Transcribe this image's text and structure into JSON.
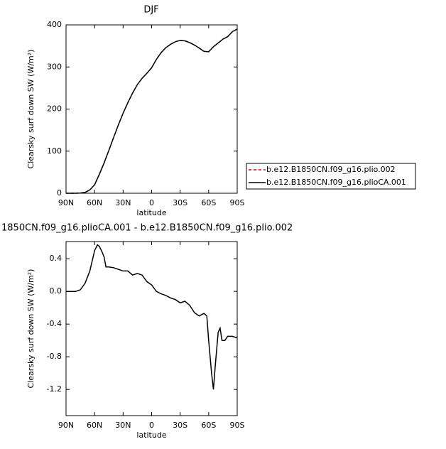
{
  "chart_data": [
    {
      "type": "line",
      "title": "DJF",
      "ylabel": "Clearsky surf down SW (W/m²)",
      "xlabel": "latitude",
      "x": [
        90,
        85,
        80,
        75,
        70,
        65,
        60,
        55,
        50,
        45,
        40,
        35,
        30,
        25,
        20,
        15,
        10,
        5,
        0,
        -5,
        -10,
        -15,
        -20,
        -25,
        -30,
        -35,
        -40,
        -45,
        -50,
        -55,
        -60,
        -65,
        -70,
        -75,
        -80,
        -85,
        -90
      ],
      "xlim": [
        90,
        -90
      ],
      "xticks": [
        {
          "value": 90,
          "label": "90N"
        },
        {
          "value": 60,
          "label": "60N"
        },
        {
          "value": 30,
          "label": "30N"
        },
        0,
        {
          "value": -30,
          "label": "30S"
        },
        {
          "value": -60,
          "label": "60S"
        },
        {
          "value": -90,
          "label": "90S"
        }
      ],
      "ylim": [
        0,
        400
      ],
      "yticks": [
        0,
        100,
        200,
        300,
        400
      ],
      "legend": "right",
      "series": [
        {
          "name": "b.e12.B1850CN.f09_g16.plio.002",
          "color": "#e00000",
          "line_style": "dashed",
          "values": [
            0,
            0,
            0,
            0.5,
            2,
            8,
            20,
            45,
            72,
            102,
            132,
            162,
            190,
            215,
            238,
            258,
            273,
            285,
            298,
            318,
            334,
            346,
            354,
            360,
            363,
            362,
            358,
            352,
            345,
            337,
            336,
            348,
            357,
            366,
            372,
            384,
            390
          ]
        },
        {
          "name": "b.e12.B1850CN.f09_g16.plioCA.001",
          "color": "#000000",
          "line_style": "solid",
          "values": [
            0,
            0,
            0,
            0.5,
            2,
            8,
            20,
            45,
            72,
            102,
            132,
            162,
            190,
            215,
            238,
            258,
            273,
            285,
            298,
            318,
            334,
            346,
            354,
            360,
            363,
            362,
            358,
            352,
            345,
            337,
            336,
            348,
            357,
            366,
            372,
            384,
            390
          ]
        }
      ]
    },
    {
      "type": "line",
      "title": "1850CN.f09_g16.plioCA.001 - b.e12.B1850CN.f09_g16.plio.002",
      "ylabel": "Clearsky surf down SW (W/m²)",
      "xlabel": "latitude",
      "x": [
        90,
        85,
        80,
        75,
        70,
        65,
        60,
        57,
        55,
        52,
        50,
        48,
        45,
        40,
        35,
        30,
        25,
        20,
        15,
        10,
        5,
        0,
        -5,
        -10,
        -15,
        -20,
        -25,
        -30,
        -35,
        -40,
        -45,
        -50,
        -55,
        -58,
        -60,
        -63,
        -65,
        -67,
        -70,
        -72,
        -74,
        -77,
        -80,
        -85,
        -90
      ],
      "xlim": [
        90,
        -90
      ],
      "xticks": [
        {
          "value": 90,
          "label": "90N"
        },
        {
          "value": 60,
          "label": "60N"
        },
        {
          "value": 30,
          "label": "30N"
        },
        0,
        {
          "value": -30,
          "label": "30S"
        },
        {
          "value": -60,
          "label": "60S"
        },
        {
          "value": -90,
          "label": "90S"
        }
      ],
      "ylim": [
        -1.52,
        0.61
      ],
      "yticks": [
        -1.2,
        -0.8,
        -0.4,
        {
          "value": 0,
          "label": "0.0"
        },
        0.4
      ],
      "series": [
        {
          "color": "#000000",
          "line_style": "solid",
          "values": [
            0,
            0,
            0,
            0.02,
            0.1,
            0.25,
            0.5,
            0.57,
            0.55,
            0.48,
            0.42,
            0.3,
            0.3,
            0.29,
            0.27,
            0.25,
            0.25,
            0.2,
            0.22,
            0.2,
            0.12,
            0.08,
            0,
            -0.03,
            -0.05,
            -0.08,
            -0.1,
            -0.14,
            -0.12,
            -0.17,
            -0.26,
            -0.3,
            -0.27,
            -0.3,
            -0.6,
            -1.0,
            -1.2,
            -0.9,
            -0.5,
            -0.45,
            -0.6,
            -0.6,
            -0.55,
            -0.55,
            -0.57
          ]
        }
      ]
    }
  ]
}
